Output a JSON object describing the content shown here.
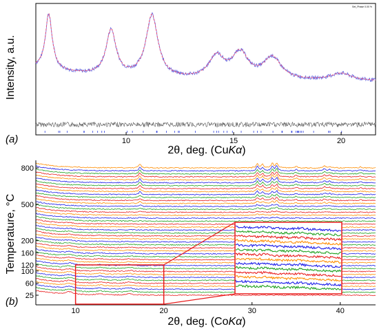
{
  "chart_data": [
    {
      "panel_label": "(a)",
      "type": "line",
      "xlabel": "2θ, deg. (CuKα)",
      "ylabel": "Intensity, a.u.",
      "legend_text": "Set_Phase 0.00 %",
      "xlim": [
        5.8,
        21.6
      ],
      "x_ticks": [
        "10",
        "15",
        "20"
      ],
      "series": [
        {
          "role": "observed",
          "color": "#6a6ae0",
          "peaks": [
            {
              "x": 6.4,
              "y": 0.76
            },
            {
              "x": 9.3,
              "y": 0.62
            },
            {
              "x": 11.2,
              "y": 0.85
            },
            {
              "x": 14.2,
              "y": 0.3
            },
            {
              "x": 15.3,
              "y": 0.35
            },
            {
              "x": 16.8,
              "y": 0.3
            },
            {
              "x": 20.0,
              "y": 0.1
            }
          ]
        },
        {
          "role": "calculated",
          "color": "#e8507a"
        },
        {
          "role": "difference",
          "color": "#555555"
        }
      ],
      "reflection_ticks_color": "#3344dd"
    },
    {
      "panel_label": "(b)",
      "type": "line",
      "xlabel": "2θ, deg. (CoKα)",
      "ylabel": "Temperature, °C",
      "xlim": [
        5.5,
        44
      ],
      "x_ticks": [
        "10",
        "20",
        "30",
        "40"
      ],
      "y_ticks": [
        {
          "label": "800",
          "value": 800
        },
        {
          "label": "500",
          "value": 500
        },
        {
          "label": "200",
          "value": 200
        },
        {
          "label": "160",
          "value": 160
        },
        {
          "label": "120",
          "value": 120
        },
        {
          "label": "100",
          "value": 100
        },
        {
          "label": "60",
          "value": 60
        },
        {
          "label": "25",
          "value": 25
        }
      ],
      "n_traces": 44,
      "trace_colors": [
        "#e81b1b",
        "#1fa01f",
        "#1b1be8",
        "#ff8c00"
      ],
      "peaks_low_temperature": [
        {
          "x": 9.3,
          "y": 0.7
        },
        {
          "x": 12.8,
          "y": 0.35
        },
        {
          "x": 16.1,
          "y": 0.4
        }
      ],
      "peaks_high_temperature": [
        {
          "x": 17.3,
          "y": 0.7
        },
        {
          "x": 30.6,
          "y": 0.8
        },
        {
          "x": 31.2,
          "y": 0.6
        },
        {
          "x": 32.3,
          "y": 0.8
        },
        {
          "x": 32.8,
          "y": 0.9
        },
        {
          "x": 35.0,
          "y": 0.3
        },
        {
          "x": 38.2,
          "y": 0.4
        },
        {
          "x": 38.8,
          "y": 0.3
        },
        {
          "x": 42.3,
          "y": 0.2
        }
      ],
      "inset_region": {
        "x": [
          10,
          20
        ],
        "temperature": [
          25,
          120
        ]
      },
      "highlight_color": "#e81b1b"
    }
  ]
}
